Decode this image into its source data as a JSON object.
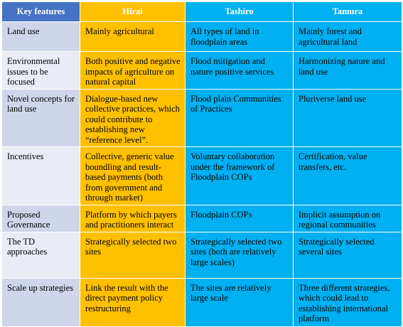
{
  "table": {
    "header": [
      "Key features",
      "Hirai",
      "Tashiro",
      "Tamura"
    ],
    "rows": [
      [
        "Land use",
        "Mainly agricultural",
        "All types of land in floodplain areas",
        "Mainly forest and agricultural land"
      ],
      [
        "Environmental issues to be focused",
        "Both positive and negative impacts of agriculture on natural capital",
        "Flood mitigation and nature positive services",
        "Harmonizing nature and land use"
      ],
      [
        "Novel concepts for land use",
        "Dialogue-based new collective practices, which could contribute to establishing new “reference level”.",
        "Flood plain Communities of Practices",
        "Pluriverse land use"
      ],
      [
        "Incentives",
        "Collective, generic value boundling and result-based payments (both from government and through market)",
        "Voluntary collaboration under the framework of Floodplain COPs",
        "Certification, value transfers, etc."
      ],
      [
        "Proposed Governance",
        "Platform by which payers and practitioners interact",
        "Floodplain COPs",
        "Implicit assumption  on regional communities"
      ],
      [
        "The TD approaches",
        "Strategically selected two sites",
        "Strategically selected two sites (both are relatively large scales)",
        "Strategically selected several  sites"
      ],
      [
        "Scale up strategies",
        "Link the result with the direct payment policy restructuring",
        "The sites are relatively large scale",
        "Three different strategies, which could lead to establishing international platform"
      ]
    ]
  }
}
